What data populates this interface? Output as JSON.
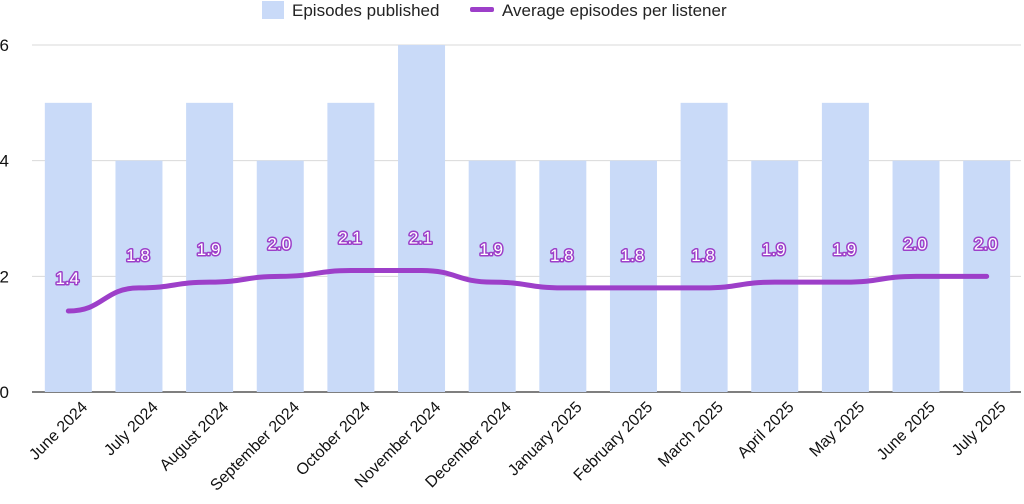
{
  "chart_data": {
    "type": "bar",
    "categories": [
      "June 2024",
      "July 2024",
      "August 2024",
      "September 2024",
      "October 2024",
      "November 2024",
      "December 2024",
      "January 2025",
      "February 2025",
      "March 2025",
      "April 2025",
      "May 2025",
      "June 2025",
      "July 2025"
    ],
    "series": [
      {
        "name": "Episodes published",
        "type": "bar",
        "color": "#c9daf8",
        "values": [
          5,
          4,
          5,
          4,
          5,
          6,
          4,
          4,
          4,
          5,
          4,
          5,
          4,
          4
        ]
      },
      {
        "name": "Average episodes per listener",
        "type": "line",
        "color": "#9d3fc9",
        "values": [
          1.4,
          1.8,
          1.9,
          2.0,
          2.1,
          2.1,
          1.9,
          1.8,
          1.8,
          1.8,
          1.9,
          1.9,
          2.0,
          2.0
        ],
        "labels": [
          "1.4",
          "1.8",
          "1.9",
          "2.0",
          "2.1",
          "2.1",
          "1.9",
          "1.8",
          "1.8",
          "1.8",
          "1.9",
          "1.9",
          "2.0",
          "2.0"
        ]
      }
    ],
    "ylim": [
      0,
      6
    ],
    "yticks": [
      0,
      2,
      4,
      6
    ],
    "ytick_labels": [
      "0",
      "2",
      "4",
      "6"
    ],
    "grid": true,
    "legend_position": "top"
  }
}
